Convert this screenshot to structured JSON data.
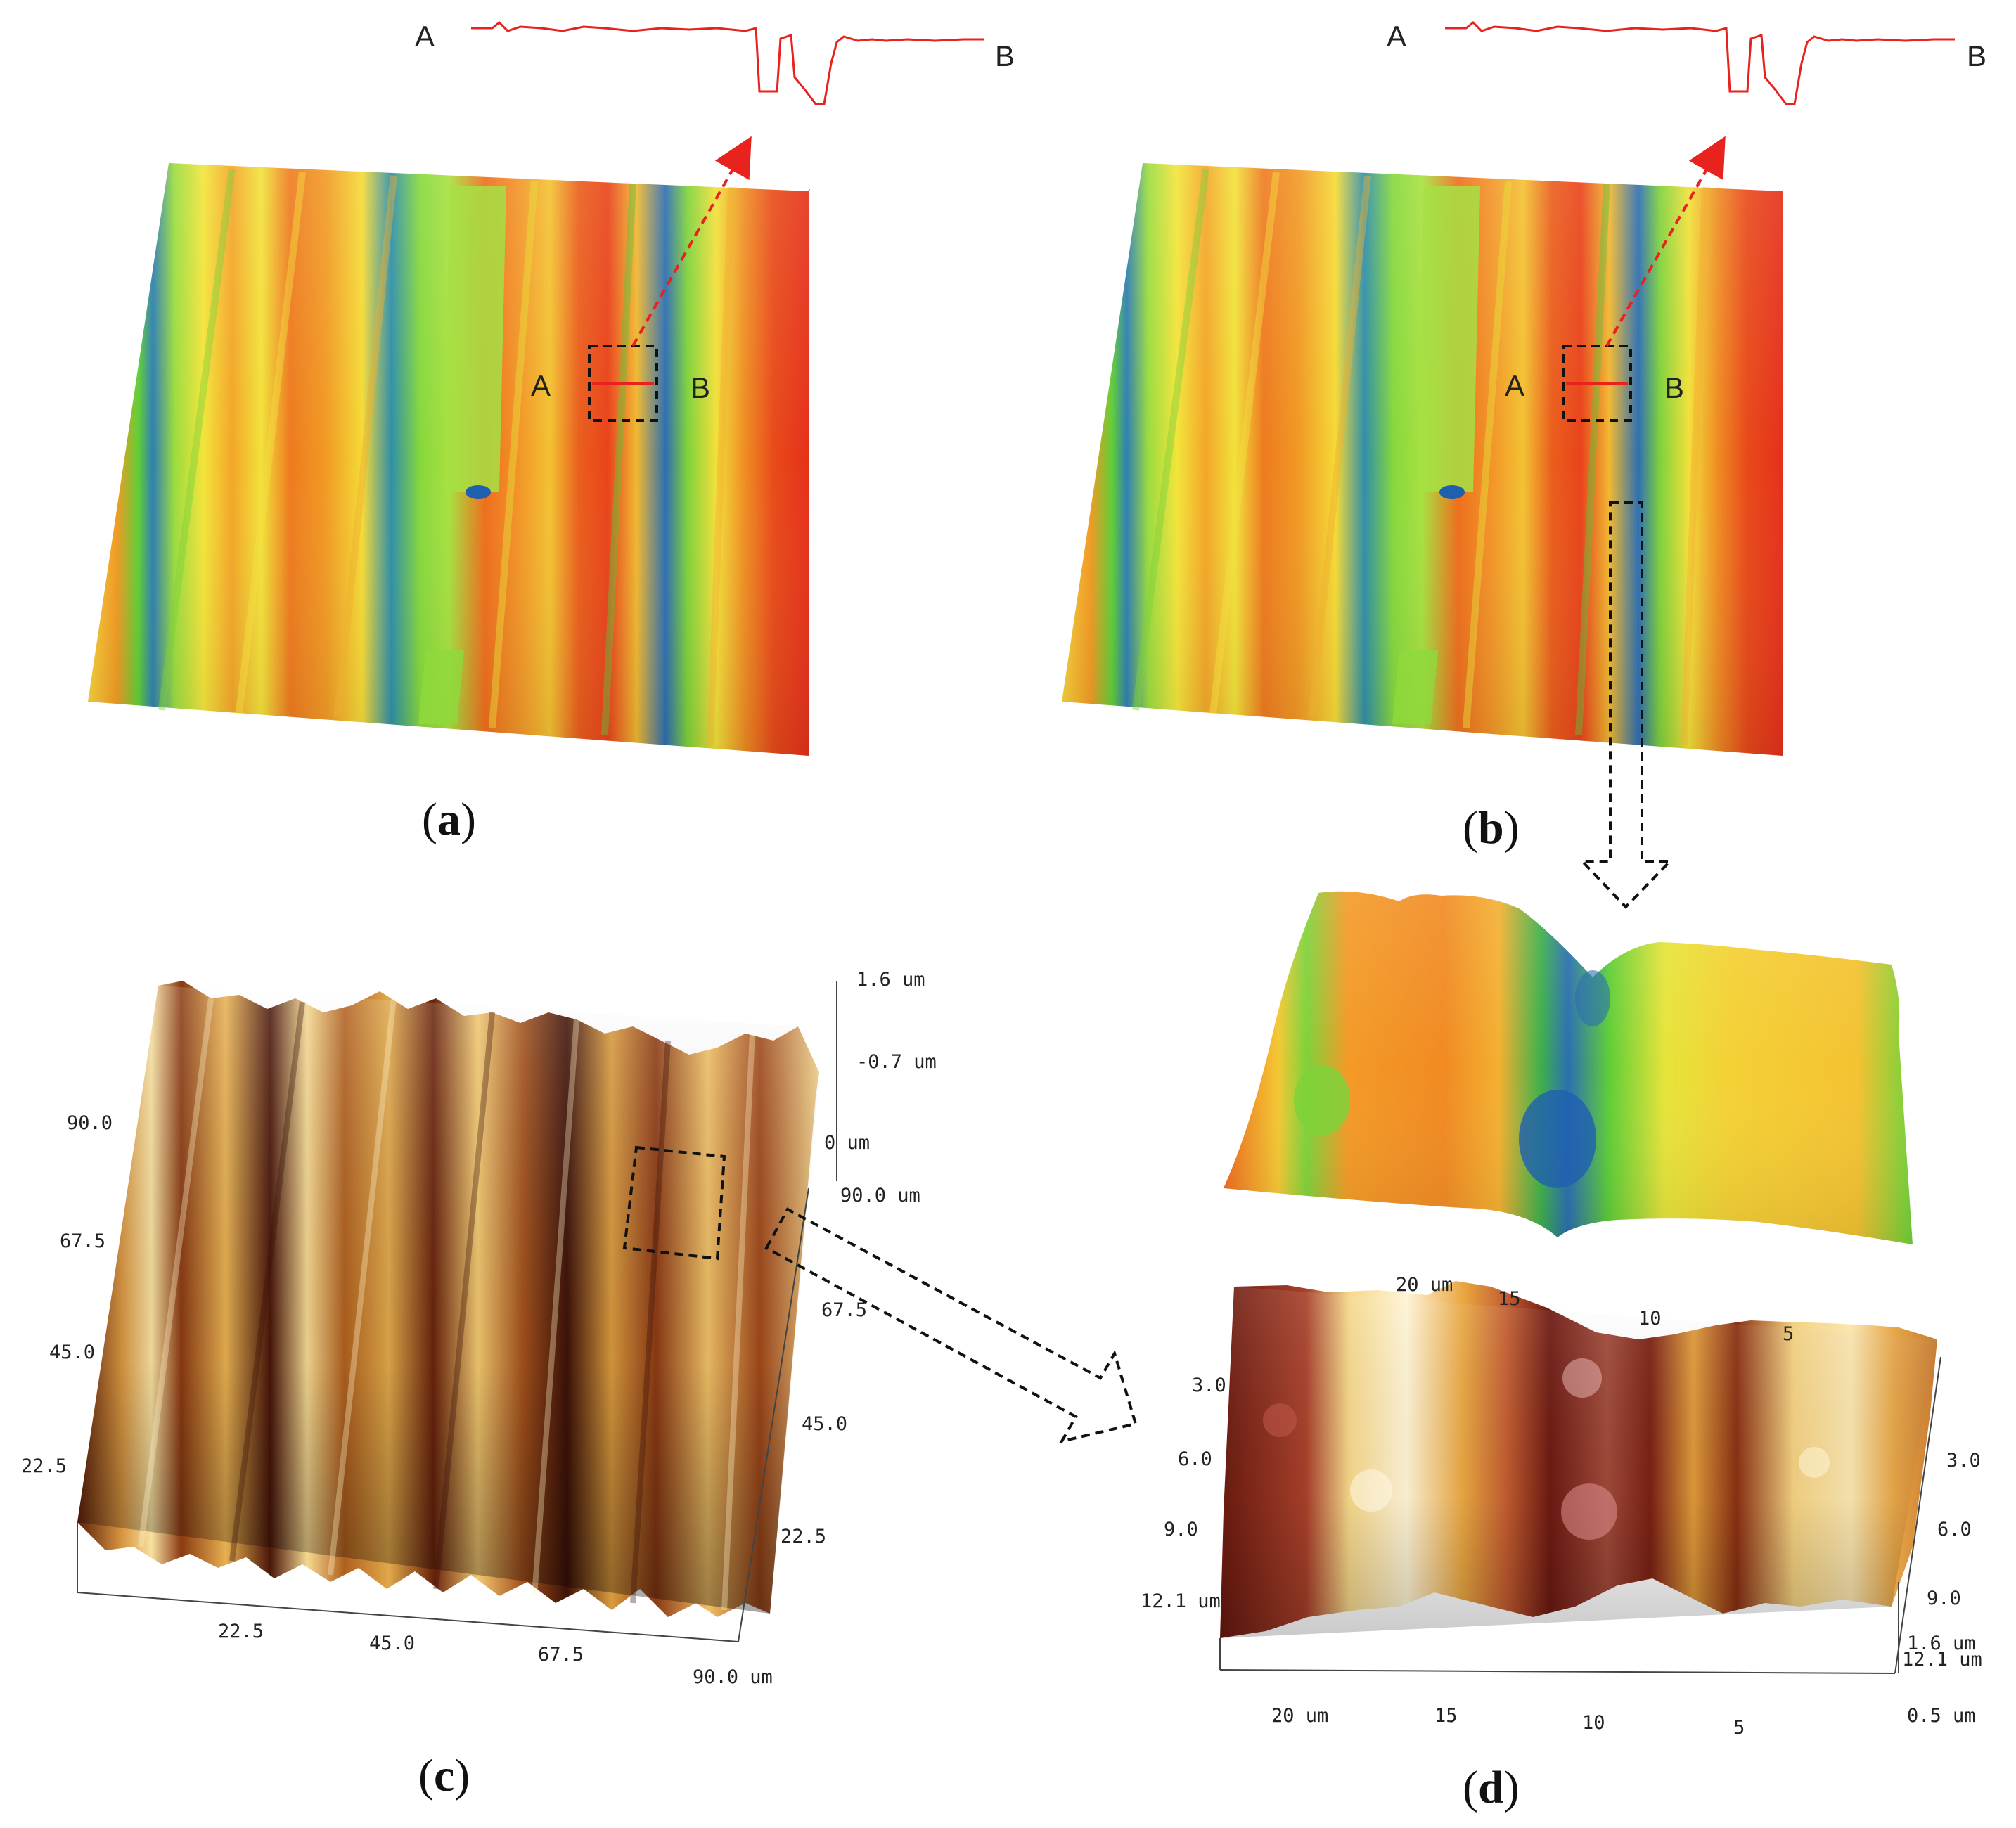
{
  "panel_a": {
    "caption_letter": "a",
    "profile_left_label": "A",
    "profile_right_label": "B",
    "map_left_label": "A",
    "map_right_label": "B"
  },
  "panel_b": {
    "caption_letter": "b",
    "profile_left_label": "A",
    "profile_right_label": "B",
    "map_left_label": "A",
    "map_right_label": "B"
  },
  "panel_c": {
    "caption_letter": "c",
    "z_ticks": [
      "1.6 um",
      "-0.7 um",
      "0 um"
    ],
    "left_ticks": [
      "90.0",
      "67.5",
      "45.0",
      "22.5"
    ],
    "right_ticks": [
      "90.0 um",
      "67.5",
      "45.0",
      "22.5"
    ],
    "bottom_ticks": [
      "22.5",
      "45.0",
      "67.5",
      "90.0 um"
    ]
  },
  "panel_d": {
    "caption_letter": "d",
    "top_ticks": [
      "20 um",
      "15",
      "10",
      "5"
    ],
    "left_ticks": [
      "3.0",
      "6.0",
      "9.0",
      "12.1 um"
    ],
    "right_ticks": [
      "3.0",
      "6.0",
      "9.0",
      "12.1 um"
    ],
    "z_ticks": [
      "1.6 um",
      "0.5 um"
    ],
    "bottom_ticks": [
      "20 um",
      "15",
      "10",
      "5"
    ]
  },
  "colors": {
    "profile_line": "#e8221c",
    "heat_red": "#e8381a",
    "heat_orange": "#f38a1e",
    "heat_yellow": "#f6e43a",
    "heat_green": "#6fd33a",
    "heat_blue": "#1f5fb0",
    "afm_dark": "#3a1208",
    "afm_mid": "#b0541a",
    "afm_light": "#f4cf7c"
  }
}
